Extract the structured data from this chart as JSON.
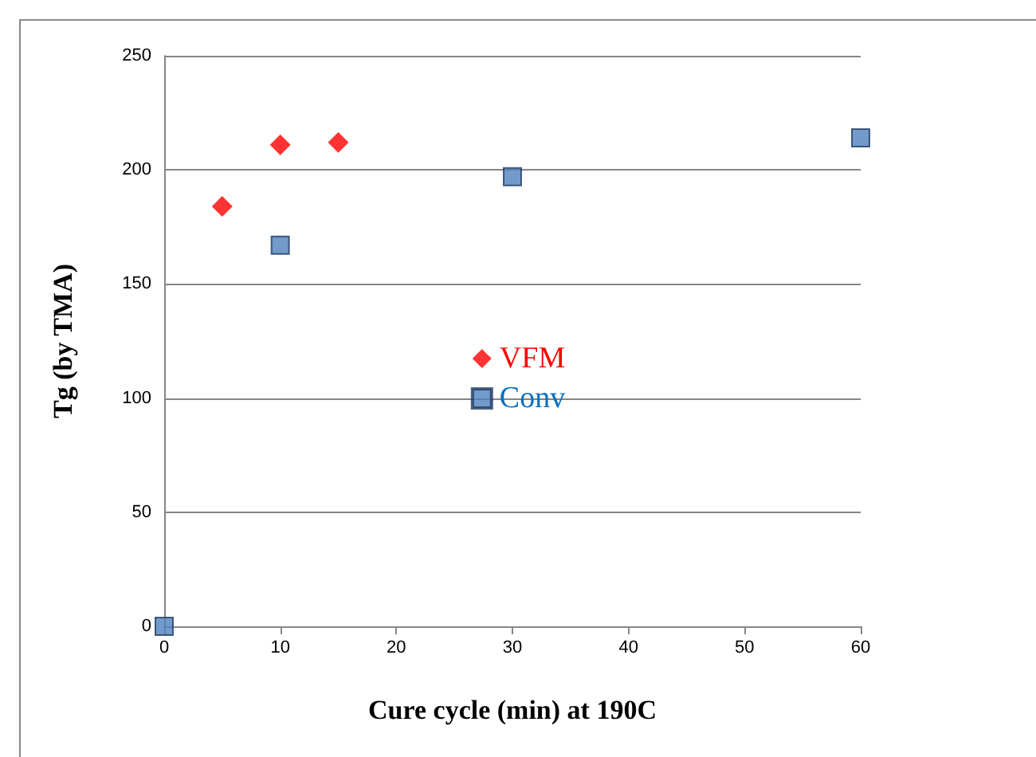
{
  "chart_data": {
    "type": "scatter",
    "xlabel": "Cure cycle (min) at 190C",
    "ylabel": "Tg (by TMA)",
    "xlim": [
      0,
      60
    ],
    "xticks": [
      0,
      10,
      20,
      30,
      40,
      50,
      60
    ],
    "ylim": [
      0,
      250
    ],
    "yticks": [
      0,
      50,
      100,
      150,
      200,
      250
    ],
    "grid": "y",
    "legend": "center",
    "series": [
      {
        "name": "VFM",
        "color": "#ff0000",
        "marker": "diamond",
        "x": [
          5,
          10,
          15
        ],
        "values": [
          184,
          211,
          212
        ]
      },
      {
        "name": "Conv",
        "color": "#4f81bd",
        "marker": "square",
        "x": [
          0,
          10,
          30,
          60
        ],
        "values": [
          0,
          167,
          197,
          214
        ]
      }
    ]
  }
}
